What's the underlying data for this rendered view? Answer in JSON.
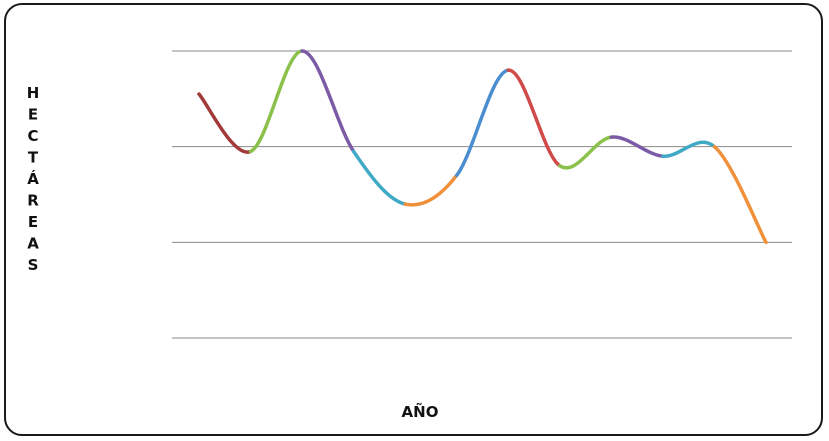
{
  "chart_data": {
    "type": "line",
    "title": "",
    "xlabel": "AÑO",
    "ylabel": "HECTÁREAS",
    "grid": true,
    "legend": "none",
    "y_gridlines": 4,
    "y_levels_note_units": "relative gridline units (0 = lowest gridline, 3 = highest); no tick labels are printed",
    "ylim": [
      0,
      3
    ],
    "x": [
      0,
      1,
      2,
      3,
      4,
      5,
      6,
      7,
      8,
      9,
      10,
      11
    ],
    "values": [
      2.55,
      1.95,
      3.0,
      1.95,
      1.4,
      1.7,
      2.8,
      1.8,
      2.1,
      1.9,
      2.0,
      1.0
    ],
    "segment_colors": [
      "#a23a3a",
      "#8bc04a",
      "#7b5aa6",
      "#3fa9c6",
      "#f0903a",
      "#4a8ed0",
      "#d04a4a",
      "#8bc04a",
      "#7b5aa6",
      "#3fa9c6",
      "#f0903a"
    ]
  }
}
